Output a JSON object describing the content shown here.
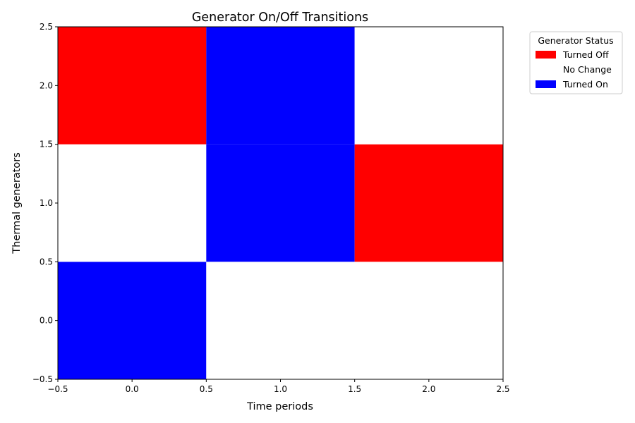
{
  "chart_data": {
    "type": "heatmap",
    "title": "Generator On/Off Transitions",
    "xlabel": "Time periods",
    "ylabel": "Thermal generators",
    "xlim": [
      -0.5,
      2.5
    ],
    "ylim": [
      -0.5,
      2.5
    ],
    "xticks": [
      "−0.5",
      "0.0",
      "0.5",
      "1.0",
      "1.5",
      "2.0",
      "2.5"
    ],
    "yticks": [
      "−0.5",
      "0.0",
      "0.5",
      "1.0",
      "1.5",
      "2.0",
      "2.5"
    ],
    "rows": [
      0,
      1,
      2
    ],
    "columns": [
      0,
      1,
      2
    ],
    "values": [
      [
        1,
        0,
        0
      ],
      [
        0,
        1,
        -1
      ],
      [
        -1,
        1,
        0
      ]
    ],
    "legend": {
      "title": "Generator Status",
      "placement": "outside-top-right",
      "entries": [
        {
          "label": "Turned Off",
          "value": -1,
          "color": "#ff0000"
        },
        {
          "label": "No Change",
          "value": 0,
          "color": "#ffffff"
        },
        {
          "label": "Turned On",
          "value": 1,
          "color": "#0000ff"
        }
      ]
    },
    "grid": false
  }
}
